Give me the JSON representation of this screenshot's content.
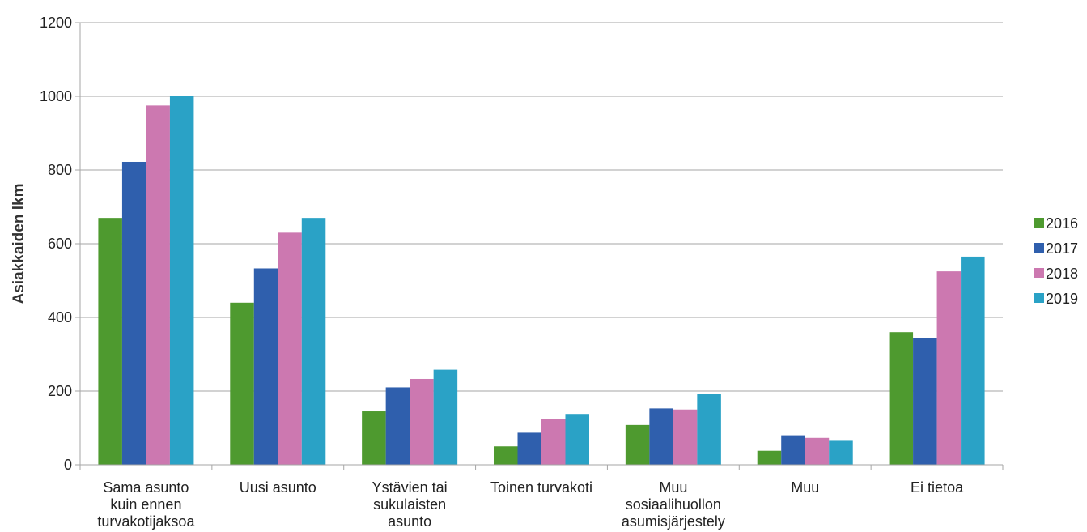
{
  "chart_data": {
    "type": "bar",
    "title": "",
    "xlabel": "",
    "ylabel": "Asiakkaiden lkm",
    "ylim": [
      0,
      1200
    ],
    "yticks": [
      "0",
      "200",
      "400",
      "600",
      "800",
      "1000",
      "1200"
    ],
    "grid": true,
    "legend_position": "right",
    "categories": [
      [
        "Sama asunto",
        "kuin ennen",
        "turvakotijaksoa"
      ],
      [
        "Uusi asunto"
      ],
      [
        "Ystävien tai",
        "sukulaisten",
        "asunto"
      ],
      [
        "Toinen turvakoti"
      ],
      [
        "Muu",
        "sosiaalihuollon",
        "asumisjärjestely"
      ],
      [
        "Muu"
      ],
      [
        "Ei tietoa"
      ]
    ],
    "series": [
      {
        "name": "2016",
        "color": "#4e9a2f",
        "values": [
          670,
          440,
          145,
          50,
          108,
          38,
          360
        ]
      },
      {
        "name": "2017",
        "color": "#2f5fad",
        "values": [
          822,
          533,
          210,
          87,
          153,
          80,
          345
        ]
      },
      {
        "name": "2018",
        "color": "#cc78b0",
        "values": [
          975,
          630,
          233,
          125,
          150,
          73,
          525
        ]
      },
      {
        "name": "2019",
        "color": "#2aa2c6",
        "values": [
          1000,
          670,
          258,
          138,
          192,
          65,
          565
        ]
      }
    ]
  }
}
